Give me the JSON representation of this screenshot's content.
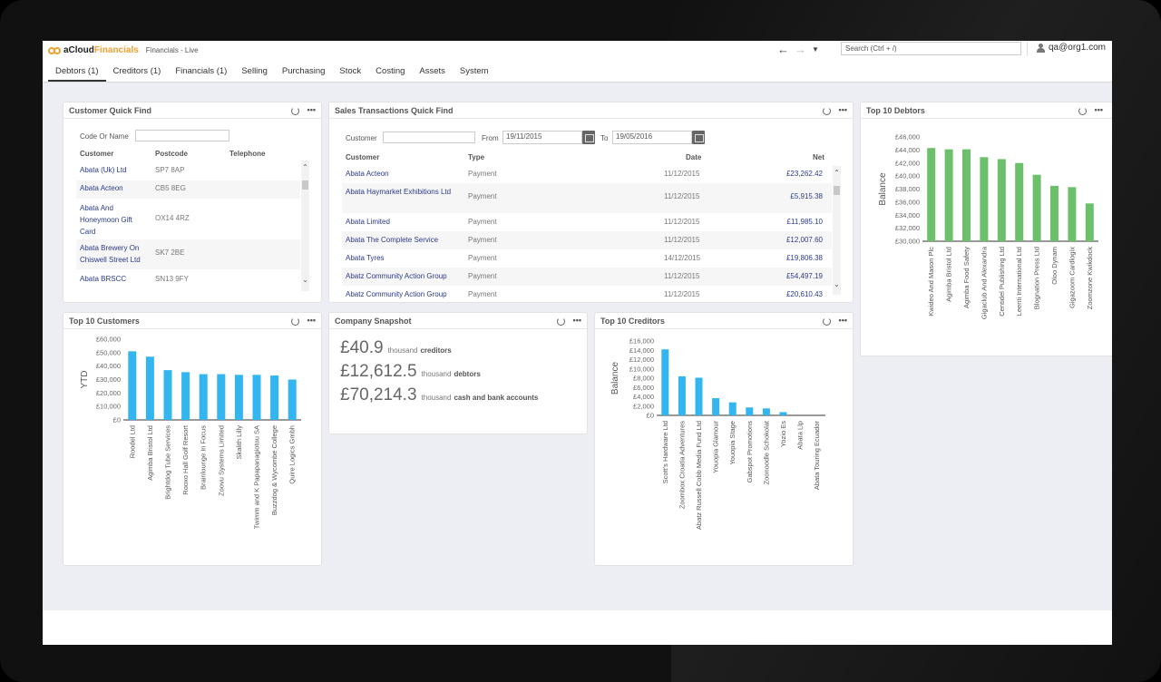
{
  "app": {
    "logo_part1": "aCloud",
    "logo_part2": "Financials",
    "subtitle": "Financials - Live"
  },
  "header": {
    "search_placeholder": "Search (Ctrl + /)",
    "user": "qa@org1.com"
  },
  "tabs": [
    {
      "label": "Debtors (1)"
    },
    {
      "label": "Creditors (1)"
    },
    {
      "label": "Financials (1)"
    },
    {
      "label": "Selling"
    },
    {
      "label": "Purchasing"
    },
    {
      "label": "Stock"
    },
    {
      "label": "Costing"
    },
    {
      "label": "Assets"
    },
    {
      "label": "System"
    }
  ],
  "customer_quick_find": {
    "title": "Customer Quick Find",
    "search_label": "Code Or Name",
    "columns": [
      "Customer",
      "Postcode",
      "Telephone"
    ],
    "rows": [
      {
        "customer": "Abata (Uk) Ltd",
        "postcode": "SP7 8AP"
      },
      {
        "customer": "Abata Acteon",
        "postcode": "CB5 8EG"
      },
      {
        "customer": "Abata And Honeymoon Gift Card",
        "postcode": "OX14 4RZ"
      },
      {
        "customer": "Abata Brewery On Chiswell Street Ltd",
        "postcode": "SK7 2BE"
      },
      {
        "customer": "Abata BRSCC",
        "postcode": "SN13 9FY"
      }
    ]
  },
  "sales_transactions": {
    "title": "Sales Transactions Quick Find",
    "customer_label": "Customer",
    "from_label": "From",
    "from_value": "19/11/2015",
    "to_label": "To",
    "to_value": "19/05/2016",
    "columns": [
      "Customer",
      "Type",
      "Date",
      "Net"
    ],
    "rows": [
      {
        "customer": "Abata Acteon",
        "type": "Payment",
        "date": "11/12/2015",
        "net": "£23,262.42"
      },
      {
        "customer": "Abata Haymarket Exhibitions Ltd",
        "type": "Payment",
        "date": "11/12/2015",
        "net": "£5,915.38"
      },
      {
        "customer": "Abata Limited",
        "type": "Payment",
        "date": "11/12/2015",
        "net": "£11,985.10"
      },
      {
        "customer": "Abata The Complete Service",
        "type": "Payment",
        "date": "11/12/2015",
        "net": "£12,007.60"
      },
      {
        "customer": "Abata Tyres",
        "type": "Payment",
        "date": "14/12/2015",
        "net": "£19,806.38"
      },
      {
        "customer": "Abatz Community Action Group",
        "type": "Payment",
        "date": "11/12/2015",
        "net": "£54,497.19"
      },
      {
        "customer": "Abatz Community Action Group",
        "type": "Payment",
        "date": "11/12/2015",
        "net": "£20,610.43"
      }
    ]
  },
  "snapshot": {
    "title": "Company Snapshot",
    "items": [
      {
        "value": "£40.9",
        "unit": "thousand",
        "label": "creditors"
      },
      {
        "value": "£12,612.5",
        "unit": "thousand",
        "label": "debtors"
      },
      {
        "value": "£70,214.3",
        "unit": "thousand",
        "label": "cash and bank accounts"
      }
    ]
  },
  "colors": {
    "customers_bar": "#33b5f0",
    "creditors_bar": "#33b5f0",
    "debtors_bar": "#6cc06c"
  },
  "chart_data": [
    {
      "id": "top10customers",
      "type": "bar",
      "title": "Top 10 Customers",
      "ylabel": "YTD",
      "ylim": [
        0,
        60000
      ],
      "yticks": [
        "£0",
        "£10,000",
        "£20,000",
        "£30,000",
        "£40,000",
        "£50,000",
        "£60,000"
      ],
      "categories": [
        "Roodel Ltd",
        "Agimba Bristol Ltd",
        "Brightdog Tube Services",
        "Rooxo Hall Golf Resort",
        "Brainlounge In Focus",
        "Zoovu Systems Limited",
        "Skalith Lilly",
        "Twimm and K Papapanagiotou SA",
        "Buzzdog & Wycombe College",
        "Quire Logics Gmbh"
      ],
      "values": [
        51000,
        47000,
        37000,
        35500,
        34000,
        34000,
        33500,
        33500,
        33000,
        30000
      ]
    },
    {
      "id": "top10creditors",
      "type": "bar",
      "title": "Top 10 Creditors",
      "ylabel": "Balance",
      "ylim": [
        0,
        16000
      ],
      "yticks": [
        "£0",
        "£2,000",
        "£4,000",
        "£6,000",
        "£8,000",
        "£10,000",
        "£12,000",
        "£14,000",
        "£16,000"
      ],
      "categories": [
        "Scott's Hardware Ltd",
        "Zoombox Croatia Adventures",
        "Abatz Russell Cobb Media Fund Ltd",
        "Youopia Glamour",
        "Youopia Stage",
        "Gabspot Promotions",
        "Zoonoodle Schokolat",
        "Yozio Es",
        "Abata Llp",
        "Abata Touring Ecuador"
      ],
      "values": [
        14200,
        8400,
        8100,
        3700,
        2800,
        1700,
        1500,
        700,
        0,
        0
      ]
    },
    {
      "id": "top10debtors",
      "type": "bar",
      "title": "Top 10 Debtors",
      "ylabel": "Balance",
      "ylim": [
        30000,
        46000
      ],
      "yticks": [
        "£30,000",
        "£32,000",
        "£34,000",
        "£36,000",
        "£38,000",
        "£40,000",
        "£42,000",
        "£44,000",
        "£46,000"
      ],
      "categories": [
        "Kwideo And Mason Plc",
        "Agimba Bristol Ltd",
        "Agimba Food Safety",
        "Gigaclub And Alexandra",
        "Centidel Publishing Ltd",
        "Leenti International Ltd",
        "Blognation Press Ltd",
        "Oloo Dynam",
        "Gigazoom Cardlogix",
        "Zoomzone Kwikdock"
      ],
      "values": [
        44300,
        44100,
        44100,
        42900,
        42600,
        42000,
        40200,
        38500,
        38300,
        35800
      ]
    }
  ]
}
